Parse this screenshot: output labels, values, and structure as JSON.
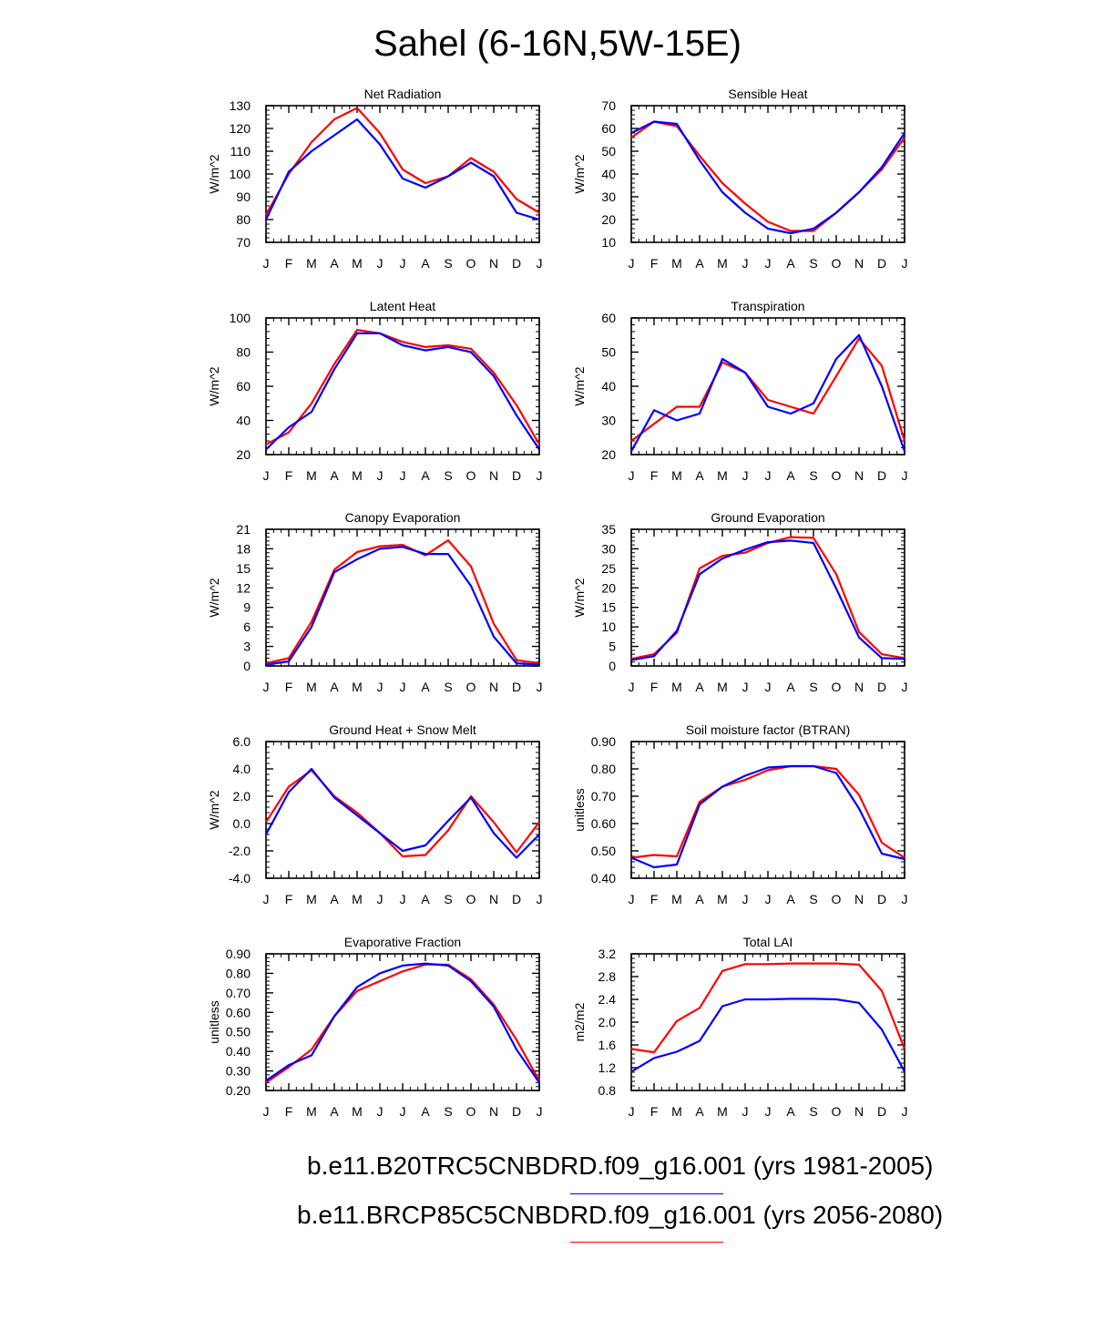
{
  "title": "Sahel (6-16N,5W-15E)",
  "colors": {
    "series1": "#0000ff",
    "series2": "#ff0000",
    "axis": "#000000"
  },
  "legend": [
    {
      "label": "b.e11.B20TRC5CNBDRD.f09_g16.001 (yrs 1981-2005)",
      "color": "#0000ff"
    },
    {
      "label": "b.e11.BRCP85C5CNBDRD.f09_g16.001 (yrs 2056-2080)",
      "color": "#ff0000"
    }
  ],
  "chart_data": [
    {
      "type": "line",
      "title": "Net Radiation",
      "ylabel": "W/m^2",
      "categories": [
        "J",
        "F",
        "M",
        "A",
        "M",
        "J",
        "J",
        "A",
        "S",
        "O",
        "N",
        "D",
        "J"
      ],
      "ylim": [
        70,
        130
      ],
      "yticks": [
        70,
        80,
        90,
        100,
        110,
        120,
        130
      ],
      "yticklabels": [
        "70",
        "80",
        "90",
        "100",
        "110",
        "120",
        "130"
      ],
      "series": [
        {
          "name": "b.e11.B20TRC5CNBDRD.f09_g16.001 (yrs 1981-2005)",
          "color": "#0000ff",
          "values": [
            80,
            101,
            110,
            117,
            124,
            113,
            98,
            94,
            99,
            105,
            99,
            83,
            80
          ]
        },
        {
          "name": "b.e11.BRCP85C5CNBDRD.f09_g16.001 (yrs 2056-2080)",
          "color": "#ff0000",
          "values": [
            82,
            100,
            114,
            124,
            129,
            118,
            102,
            96,
            99,
            107,
            101,
            89,
            83
          ]
        }
      ]
    },
    {
      "type": "line",
      "title": "Sensible Heat",
      "ylabel": "W/m^2",
      "categories": [
        "J",
        "F",
        "M",
        "A",
        "M",
        "J",
        "J",
        "A",
        "S",
        "O",
        "N",
        "D",
        "J"
      ],
      "ylim": [
        10,
        70
      ],
      "yticks": [
        10,
        20,
        30,
        40,
        50,
        60,
        70
      ],
      "yticklabels": [
        "10",
        "20",
        "30",
        "40",
        "50",
        "60",
        "70"
      ],
      "series": [
        {
          "name": "b.e11.B20TRC5CNBDRD.f09_g16.001 (yrs 1981-2005)",
          "color": "#0000ff",
          "values": [
            58,
            63,
            62,
            46,
            32,
            23,
            16,
            14,
            16,
            23,
            32,
            43,
            58
          ]
        },
        {
          "name": "b.e11.BRCP85C5CNBDRD.f09_g16.001 (yrs 2056-2080)",
          "color": "#ff0000",
          "values": [
            56,
            63,
            61,
            48,
            36,
            27,
            19,
            15,
            15,
            23,
            32,
            42,
            56
          ]
        }
      ]
    },
    {
      "type": "line",
      "title": "Latent Heat",
      "ylabel": "W/m^2",
      "categories": [
        "J",
        "F",
        "M",
        "A",
        "M",
        "J",
        "J",
        "A",
        "S",
        "O",
        "N",
        "D",
        "J"
      ],
      "ylim": [
        20,
        100
      ],
      "yticks": [
        20,
        40,
        60,
        80,
        100
      ],
      "yticklabels": [
        "20",
        "40",
        "60",
        "80",
        "100"
      ],
      "series": [
        {
          "name": "b.e11.B20TRC5CNBDRD.f09_g16.001 (yrs 1981-2005)",
          "color": "#0000ff",
          "values": [
            23,
            36,
            45,
            70,
            91,
            91,
            84,
            81,
            83,
            80,
            66,
            43,
            23
          ]
        },
        {
          "name": "b.e11.BRCP85C5CNBDRD.f09_g16.001 (yrs 2056-2080)",
          "color": "#ff0000",
          "values": [
            26,
            33,
            50,
            73,
            93,
            91,
            86,
            83,
            84,
            82,
            68,
            49,
            26
          ]
        }
      ]
    },
    {
      "type": "line",
      "title": "Transpiration",
      "ylabel": "W/m^2",
      "categories": [
        "J",
        "F",
        "M",
        "A",
        "M",
        "J",
        "J",
        "A",
        "S",
        "O",
        "N",
        "D",
        "J"
      ],
      "ylim": [
        20,
        60
      ],
      "yticks": [
        20,
        30,
        40,
        50,
        60
      ],
      "yticklabels": [
        "20",
        "30",
        "40",
        "50",
        "60"
      ],
      "series": [
        {
          "name": "b.e11.B20TRC5CNBDRD.f09_g16.001 (yrs 1981-2005)",
          "color": "#0000ff",
          "values": [
            21,
            33,
            30,
            32,
            48,
            44,
            34,
            32,
            35,
            48,
            55,
            40,
            21
          ]
        },
        {
          "name": "b.e11.BRCP85C5CNBDRD.f09_g16.001 (yrs 2056-2080)",
          "color": "#ff0000",
          "values": [
            24,
            29,
            34,
            34,
            47,
            44,
            36,
            34,
            32,
            43,
            54,
            46,
            24
          ]
        }
      ]
    },
    {
      "type": "line",
      "title": "Canopy Evaporation",
      "ylabel": "W/m^2",
      "categories": [
        "J",
        "F",
        "M",
        "A",
        "M",
        "J",
        "J",
        "A",
        "S",
        "O",
        "N",
        "D",
        "J"
      ],
      "ylim": [
        0,
        21
      ],
      "yticks": [
        0,
        3,
        6,
        9,
        12,
        15,
        18,
        21
      ],
      "yticklabels": [
        "0",
        "3",
        "6",
        "9",
        "12",
        "15",
        "18",
        "21"
      ],
      "series": [
        {
          "name": "b.e11.B20TRC5CNBDRD.f09_g16.001 (yrs 1981-2005)",
          "color": "#0000ff",
          "values": [
            0.2,
            0.7,
            6.0,
            14.4,
            16.4,
            18.0,
            18.3,
            17.2,
            17.2,
            12.3,
            4.5,
            0.4,
            0.2
          ]
        },
        {
          "name": "b.e11.BRCP85C5CNBDRD.f09_g16.001 (yrs 2056-2080)",
          "color": "#ff0000",
          "values": [
            0.4,
            1.2,
            6.8,
            14.8,
            17.5,
            18.4,
            18.6,
            17.0,
            19.3,
            15.3,
            6.5,
            0.9,
            0.4
          ]
        }
      ]
    },
    {
      "type": "line",
      "title": "Ground Evaporation",
      "ylabel": "W/m^2",
      "categories": [
        "J",
        "F",
        "M",
        "A",
        "M",
        "J",
        "J",
        "A",
        "S",
        "O",
        "N",
        "D",
        "J"
      ],
      "ylim": [
        0,
        35
      ],
      "yticks": [
        0,
        5,
        10,
        15,
        20,
        25,
        30,
        35
      ],
      "yticklabels": [
        "0",
        "5",
        "10",
        "15",
        "20",
        "25",
        "30",
        "35"
      ],
      "series": [
        {
          "name": "b.e11.B20TRC5CNBDRD.f09_g16.001 (yrs 1981-2005)",
          "color": "#0000ff",
          "values": [
            1.5,
            2.5,
            9.0,
            23.5,
            27.5,
            29.8,
            31.7,
            32.1,
            31.5,
            19.8,
            7.3,
            2.0,
            1.8
          ]
        },
        {
          "name": "b.e11.BRCP85C5CNBDRD.f09_g16.001 (yrs 2056-2080)",
          "color": "#ff0000",
          "values": [
            1.8,
            3.0,
            8.5,
            25.0,
            28.2,
            29.0,
            31.5,
            33.0,
            32.8,
            23.5,
            8.7,
            3.0,
            2.0
          ]
        }
      ]
    },
    {
      "type": "line",
      "title": "Ground Heat + Snow Melt",
      "ylabel": "W/m^2",
      "categories": [
        "J",
        "F",
        "M",
        "A",
        "M",
        "J",
        "J",
        "A",
        "S",
        "O",
        "N",
        "D",
        "J"
      ],
      "ylim": [
        -4,
        6
      ],
      "yticks": [
        -4,
        -2,
        0,
        2,
        4,
        6
      ],
      "yticklabels": [
        "-4.0",
        "-2.0",
        "0.0",
        "2.0",
        "4.0",
        "6.0"
      ],
      "series": [
        {
          "name": "b.e11.B20TRC5CNBDRD.f09_g16.001 (yrs 1981-2005)",
          "color": "#0000ff",
          "values": [
            -0.8,
            2.3,
            4.0,
            1.9,
            0.6,
            -0.7,
            -2.0,
            -1.6,
            0.2,
            1.9,
            -0.7,
            -2.5,
            -0.8
          ]
        },
        {
          "name": "b.e11.BRCP85C5CNBDRD.f09_g16.001 (yrs 2056-2080)",
          "color": "#ff0000",
          "values": [
            0.1,
            2.7,
            3.9,
            2.0,
            0.8,
            -0.7,
            -2.4,
            -2.3,
            -0.5,
            2.0,
            0.1,
            -2.1,
            0.1
          ]
        }
      ]
    },
    {
      "type": "line",
      "title": "Soil moisture factor (BTRAN)",
      "ylabel": "unitless",
      "categories": [
        "J",
        "F",
        "M",
        "A",
        "M",
        "J",
        "J",
        "A",
        "S",
        "O",
        "N",
        "D",
        "J"
      ],
      "ylim": [
        0.4,
        0.9
      ],
      "yticks": [
        0.4,
        0.5,
        0.6,
        0.7,
        0.8,
        0.9
      ],
      "yticklabels": [
        "0.40",
        "0.50",
        "0.60",
        "0.70",
        "0.80",
        "0.90"
      ],
      "series": [
        {
          "name": "b.e11.B20TRC5CNBDRD.f09_g16.001 (yrs 1981-2005)",
          "color": "#0000ff",
          "values": [
            0.475,
            0.44,
            0.45,
            0.67,
            0.735,
            0.775,
            0.805,
            0.81,
            0.81,
            0.785,
            0.655,
            0.49,
            0.47
          ]
        },
        {
          "name": "b.e11.BRCP85C5CNBDRD.f09_g16.001 (yrs 2056-2080)",
          "color": "#ff0000",
          "values": [
            0.475,
            0.485,
            0.48,
            0.68,
            0.735,
            0.76,
            0.795,
            0.81,
            0.81,
            0.8,
            0.705,
            0.53,
            0.475
          ]
        }
      ]
    },
    {
      "type": "line",
      "title": "Evaporative Fraction",
      "ylabel": "unitless",
      "categories": [
        "J",
        "F",
        "M",
        "A",
        "M",
        "J",
        "J",
        "A",
        "S",
        "O",
        "N",
        "D",
        "J"
      ],
      "ylim": [
        0.2,
        0.9
      ],
      "yticks": [
        0.2,
        0.3,
        0.4,
        0.5,
        0.6,
        0.7,
        0.8,
        0.9
      ],
      "yticklabels": [
        "0.20",
        "0.30",
        "0.40",
        "0.50",
        "0.60",
        "0.70",
        "0.80",
        "0.90"
      ],
      "series": [
        {
          "name": "b.e11.B20TRC5CNBDRD.f09_g16.001 (yrs 1981-2005)",
          "color": "#0000ff",
          "values": [
            0.25,
            0.33,
            0.38,
            0.58,
            0.73,
            0.8,
            0.84,
            0.85,
            0.84,
            0.76,
            0.63,
            0.41,
            0.24
          ]
        },
        {
          "name": "b.e11.BRCP85C5CNBDRD.f09_g16.001 (yrs 2056-2080)",
          "color": "#ff0000",
          "values": [
            0.24,
            0.32,
            0.41,
            0.58,
            0.71,
            0.76,
            0.81,
            0.845,
            0.845,
            0.77,
            0.64,
            0.46,
            0.25
          ]
        }
      ]
    },
    {
      "type": "line",
      "title": "Total LAI",
      "ylabel": "m2/m2",
      "categories": [
        "J",
        "F",
        "M",
        "A",
        "M",
        "J",
        "J",
        "A",
        "S",
        "O",
        "N",
        "D",
        "J"
      ],
      "ylim": [
        0.8,
        3.2
      ],
      "yticks": [
        0.8,
        1.2,
        1.6,
        2.0,
        2.4,
        2.8,
        3.2
      ],
      "yticklabels": [
        "0.8",
        "1.2",
        "1.6",
        "2.0",
        "2.4",
        "2.8",
        "3.2"
      ],
      "series": [
        {
          "name": "b.e11.B20TRC5CNBDRD.f09_g16.001 (yrs 1981-2005)",
          "color": "#0000ff",
          "values": [
            1.13,
            1.37,
            1.48,
            1.67,
            2.28,
            2.4,
            2.4,
            2.41,
            2.41,
            2.4,
            2.34,
            1.87,
            1.13
          ]
        },
        {
          "name": "b.e11.BRCP85C5CNBDRD.f09_g16.001 (yrs 2056-2080)",
          "color": "#ff0000",
          "values": [
            1.53,
            1.47,
            2.02,
            2.25,
            2.9,
            3.02,
            3.02,
            3.03,
            3.03,
            3.03,
            3.01,
            2.55,
            1.53
          ]
        }
      ]
    }
  ]
}
